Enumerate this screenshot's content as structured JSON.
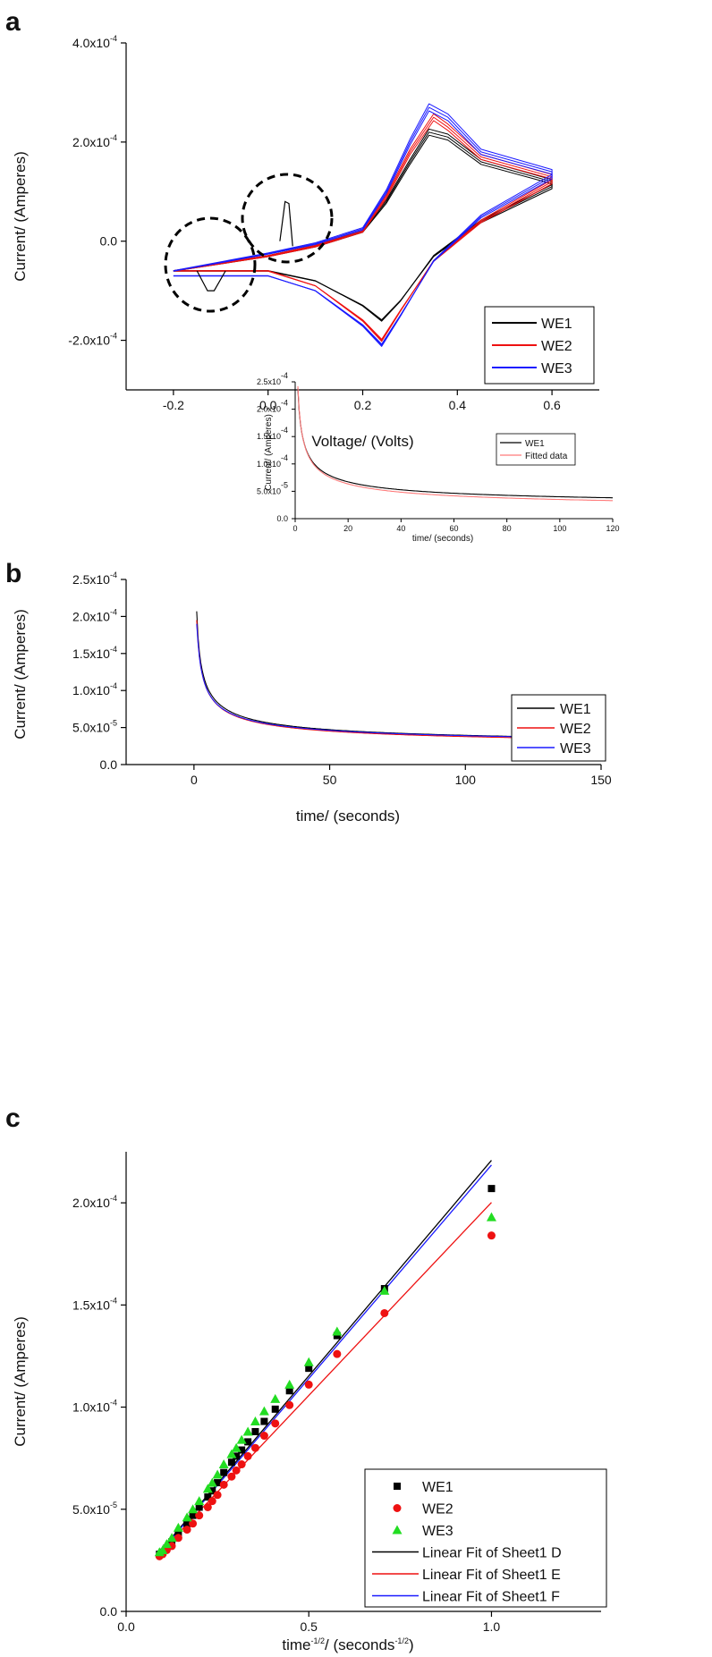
{
  "panels": {
    "a": "a",
    "b": "b",
    "c": "c"
  },
  "colors": {
    "WE1": "#000000",
    "WE2": "#ee1111",
    "WE3": "#1a1aff",
    "WE3_marker": "#22dd22"
  },
  "chart_data": [
    {
      "id": "a",
      "type": "line",
      "xlabel": "Voltage/ (Volts)",
      "ylabel": "Current/ (Amperes)",
      "xlim": [
        -0.3,
        0.7
      ],
      "ylim": [
        -0.0003,
        0.0004
      ],
      "xticks": [
        -0.2,
        0.0,
        0.2,
        0.4,
        0.6
      ],
      "xtick_labels": [
        "-0.2",
        "0.0",
        "0.2",
        "0.4",
        "0.6"
      ],
      "yticks": [
        -0.0002,
        0.0,
        0.0002,
        0.0004
      ],
      "ytick_labels": [
        {
          "m": "-2.0x10",
          "e": "-4"
        },
        {
          "m": "0.0",
          "e": ""
        },
        {
          "m": "2.0x10",
          "e": "-4"
        },
        {
          "m": "4.0x10",
          "e": "-4"
        }
      ],
      "legend": {
        "position": "bottom-right",
        "entries": [
          "WE1",
          "WE2",
          "WE3"
        ]
      },
      "annotations": [
        "dashed circle around oxidation spike near 0.04 V",
        "dashed circle around reduction dip near -0.12 V"
      ],
      "series": [
        {
          "name": "WE1",
          "forward": [
            [
              -0.2,
              -6e-05
            ],
            [
              0.0,
              -3e-05
            ],
            [
              0.1,
              -1e-05
            ],
            [
              0.2,
              2e-05
            ],
            [
              0.25,
              8e-05
            ],
            [
              0.3,
              0.00016
            ],
            [
              0.34,
              0.00022
            ],
            [
              0.38,
              0.00021
            ],
            [
              0.45,
              0.00016
            ],
            [
              0.6,
              0.00012
            ]
          ],
          "reverse": [
            [
              0.6,
              0.00011
            ],
            [
              0.45,
              4e-05
            ],
            [
              0.35,
              -3e-05
            ],
            [
              0.28,
              -0.00012
            ],
            [
              0.24,
              -0.00016
            ],
            [
              0.2,
              -0.00013
            ],
            [
              0.1,
              -8e-05
            ],
            [
              0.0,
              -6e-05
            ],
            [
              -0.2,
              -6e-05
            ]
          ],
          "spike_peak": [
            0.04,
            8e-05
          ],
          "dip_min": [
            -0.12,
            -0.0001
          ]
        },
        {
          "name": "WE2",
          "forward": [
            [
              -0.2,
              -6e-05
            ],
            [
              0.0,
              -3e-05
            ],
            [
              0.1,
              -1e-05
            ],
            [
              0.2,
              2e-05
            ],
            [
              0.25,
              9e-05
            ],
            [
              0.3,
              0.00018
            ],
            [
              0.35,
              0.00025
            ],
            [
              0.38,
              0.00023
            ],
            [
              0.45,
              0.00017
            ],
            [
              0.6,
              0.00013
            ]
          ],
          "reverse": [
            [
              0.6,
              0.00012
            ],
            [
              0.45,
              4e-05
            ],
            [
              0.35,
              -4e-05
            ],
            [
              0.28,
              -0.00014
            ],
            [
              0.24,
              -0.0002
            ],
            [
              0.2,
              -0.00016
            ],
            [
              0.1,
              -9e-05
            ],
            [
              0.0,
              -6e-05
            ],
            [
              -0.2,
              -6e-05
            ]
          ]
        },
        {
          "name": "WE3",
          "forward": [
            [
              -0.2,
              -6e-05
            ],
            [
              0.0,
              -2.5e-05
            ],
            [
              0.1,
              -5e-06
            ],
            [
              0.2,
              2.5e-05
            ],
            [
              0.25,
              0.0001
            ],
            [
              0.3,
              0.0002
            ],
            [
              0.34,
              0.00027
            ],
            [
              0.38,
              0.00025
            ],
            [
              0.45,
              0.00018
            ],
            [
              0.6,
              0.00014
            ]
          ],
          "reverse": [
            [
              0.6,
              0.00013
            ],
            [
              0.45,
              5e-05
            ],
            [
              0.35,
              -4e-05
            ],
            [
              0.28,
              -0.00015
            ],
            [
              0.24,
              -0.00021
            ],
            [
              0.2,
              -0.00017
            ],
            [
              0.1,
              -0.0001
            ],
            [
              0.0,
              -7e-05
            ],
            [
              -0.2,
              -7e-05
            ]
          ]
        }
      ]
    },
    {
      "id": "b",
      "type": "line",
      "xlabel": "time/ (seconds)",
      "ylabel": "Current/ (Amperes)",
      "xlim": [
        -25,
        150
      ],
      "ylim": [
        0,
        0.00025
      ],
      "xticks": [
        0,
        50,
        100,
        150
      ],
      "xtick_labels": [
        "0",
        "50",
        "100",
        "150"
      ],
      "yticks": [
        0,
        5e-05,
        0.0001,
        0.00015,
        0.0002,
        0.00025
      ],
      "ytick_labels": [
        {
          "m": "0.0",
          "e": ""
        },
        {
          "m": "5.0x10",
          "e": "-5"
        },
        {
          "m": "1.0x10",
          "e": "-4"
        },
        {
          "m": "1.5x10",
          "e": "-4"
        },
        {
          "m": "2.0x10",
          "e": "-4"
        },
        {
          "m": "2.5x10",
          "e": "-4"
        }
      ],
      "legend": {
        "position": "bottom-right",
        "entries": [
          "WE1",
          "WE2",
          "WE3"
        ]
      },
      "series": [
        {
          "name": "WE1",
          "start": [
            1,
            0.000207
          ],
          "i_inf": 2.1e-05,
          "k": 0.000185,
          "t0": 1
        },
        {
          "name": "WE2",
          "start": [
            1,
            0.000195
          ],
          "i_inf": 2e-05,
          "k": 0.000178,
          "t0": 1
        },
        {
          "name": "WE3",
          "start": [
            1,
            0.00019
          ],
          "i_inf": 2.15e-05,
          "k": 0.000175,
          "t0": 1
        }
      ],
      "inset": {
        "type": "line",
        "xlabel": "time/ (seconds)",
        "ylabel": "Current/ (Amperes)",
        "xlim": [
          0,
          120
        ],
        "ylim": [
          0,
          0.00025
        ],
        "xticks": [
          0,
          20,
          40,
          60,
          80,
          100,
          120
        ],
        "xtick_labels": [
          "0",
          "20",
          "40",
          "60",
          "80",
          "100",
          "120"
        ],
        "yticks": [
          0,
          5e-05,
          0.0001,
          0.00015,
          0.0002,
          0.00025
        ],
        "ytick_labels": [
          {
            "m": "0.0",
            "e": ""
          },
          {
            "m": "5.0x10",
            "e": "-5"
          },
          {
            "m": "1.0x10",
            "e": "-4"
          },
          {
            "m": "1.5x10",
            "e": "-4"
          },
          {
            "m": "2.0x10",
            "e": "-4"
          },
          {
            "m": "2.5x10",
            "e": "-4"
          }
        ],
        "legend": {
          "position": "right",
          "entries": [
            "WE1",
            "Fitted data"
          ]
        },
        "series": [
          {
            "name": "WE1",
            "i_inf": 1.8e-05,
            "k": 0.00022,
            "t0": 1
          },
          {
            "name": "Fitted data",
            "i_inf": 1.2e-05,
            "k": 0.00023,
            "t0": 1
          }
        ]
      }
    },
    {
      "id": "c",
      "type": "scatter",
      "xlabel_main": "time",
      "xlabel_exp1": "-1/2",
      "xlabel_mid": "/ (seconds",
      "xlabel_exp2": "-1/2",
      "xlabel_end": ")",
      "ylabel": "Current/ (Amperes)",
      "xlim": [
        0,
        1.3
      ],
      "ylim": [
        0,
        0.000225
      ],
      "xticks": [
        0.0,
        0.5,
        1.0
      ],
      "xtick_labels": [
        "0.0",
        "0.5",
        "1.0"
      ],
      "yticks": [
        0,
        5e-05,
        0.0001,
        0.00015,
        0.0002
      ],
      "ytick_labels": [
        {
          "m": "0.0",
          "e": ""
        },
        {
          "m": "5.0x10",
          "e": "-5"
        },
        {
          "m": "1.0x10",
          "e": "-4"
        },
        {
          "m": "1.5x10",
          "e": "-4"
        },
        {
          "m": "2.0x10",
          "e": "-4"
        }
      ],
      "legend": {
        "position": "bottom-right",
        "entries": [
          "WE1",
          "WE2",
          "WE3",
          "Linear Fit of Sheet1 D",
          "Linear Fit of Sheet1 E",
          "Linear Fit of Sheet1 F"
        ]
      },
      "x": [
        0.0913,
        0.1,
        0.1111,
        0.125,
        0.1429,
        0.1667,
        0.1826,
        0.2,
        0.2236,
        0.2357,
        0.25,
        0.2673,
        0.2887,
        0.3015,
        0.3162,
        0.3333,
        0.3536,
        0.378,
        0.4082,
        0.4472,
        0.5,
        0.5774,
        0.7071,
        1.0
      ],
      "series": [
        {
          "name": "WE1",
          "marker": "square",
          "values": [
            2.8e-05,
            2.9e-05,
            3.1e-05,
            3.4e-05,
            3.8e-05,
            4.3e-05,
            4.7e-05,
            5.1e-05,
            5.6e-05,
            5.9e-05,
            6.3e-05,
            6.8e-05,
            7.3e-05,
            7.6e-05,
            7.9e-05,
            8.3e-05,
            8.8e-05,
            9.3e-05,
            9.9e-05,
            0.000108,
            0.000119,
            0.000135,
            0.000158,
            0.000207
          ]
        },
        {
          "name": "WE2",
          "marker": "circle",
          "values": [
            2.7e-05,
            2.8e-05,
            3e-05,
            3.2e-05,
            3.6e-05,
            4e-05,
            4.3e-05,
            4.7e-05,
            5.1e-05,
            5.4e-05,
            5.7e-05,
            6.2e-05,
            6.6e-05,
            6.9e-05,
            7.2e-05,
            7.6e-05,
            8e-05,
            8.6e-05,
            9.2e-05,
            0.000101,
            0.000111,
            0.000126,
            0.000146,
            0.000184
          ]
        },
        {
          "name": "WE3",
          "marker": "triangle",
          "values": [
            2.9e-05,
            3e-05,
            3.3e-05,
            3.6e-05,
            4.1e-05,
            4.6e-05,
            5e-05,
            5.4e-05,
            6e-05,
            6.3e-05,
            6.7e-05,
            7.2e-05,
            7.7e-05,
            8e-05,
            8.4e-05,
            8.8e-05,
            9.3e-05,
            9.8e-05,
            0.000104,
            0.000111,
            0.000122,
            0.000137,
            0.000157,
            0.000193
          ]
        }
      ],
      "fits": [
        {
          "name": "Linear Fit of Sheet1 D",
          "color_of": "WE1",
          "intercept": 9.8e-06,
          "slope": 0.000211,
          "x_range": [
            0.09,
            1.0
          ]
        },
        {
          "name": "Linear Fit of Sheet1 E",
          "color_of": "WE2",
          "intercept": 1.12e-05,
          "slope": 0.000189,
          "x_range": [
            0.09,
            1.0
          ]
        },
        {
          "name": "Linear Fit of Sheet1 F",
          "color_of": "WE3",
          "intercept": 9.5e-06,
          "slope": 0.000209,
          "x_range": [
            0.09,
            1.0
          ]
        }
      ]
    }
  ]
}
